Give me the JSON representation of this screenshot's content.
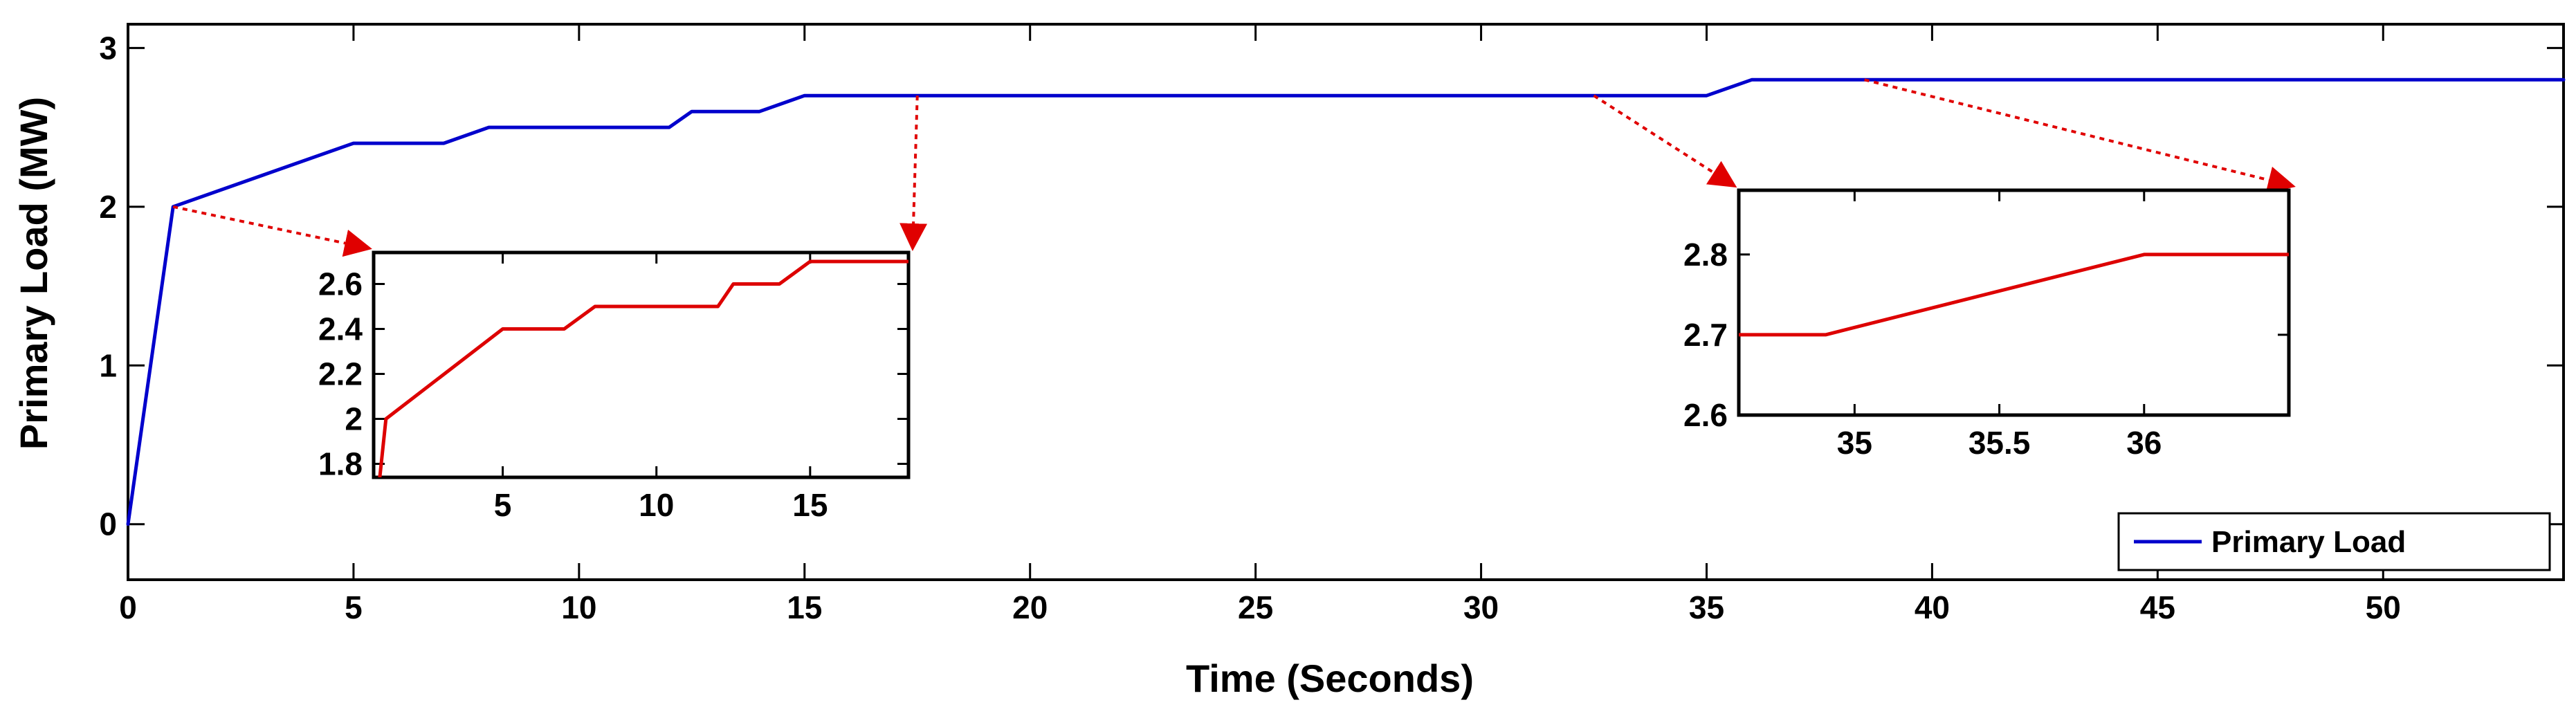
{
  "chart_data": {
    "type": "line",
    "xlabel": "Time (Seconds)",
    "ylabel": "Primary Load (MW)",
    "xlim": [
      0,
      54
    ],
    "ylim": [
      -0.35,
      3.15
    ],
    "xticks": [
      0,
      5,
      10,
      15,
      20,
      25,
      30,
      35,
      40,
      45,
      50
    ],
    "yticks": [
      0,
      1,
      2,
      3
    ],
    "grid": false,
    "legend_position": "bottom-right",
    "series": [
      {
        "name": "Primary Load",
        "color": "#0000cc",
        "x": [
          0,
          1,
          5,
          7,
          8,
          12,
          12.5,
          14,
          15,
          35,
          36,
          54
        ],
        "y": [
          0,
          2.0,
          2.4,
          2.4,
          2.5,
          2.5,
          2.6,
          2.6,
          2.7,
          2.7,
          2.8,
          2.8
        ]
      }
    ],
    "insets": [
      {
        "type": "line",
        "color": "#dd0000",
        "xlim": [
          0.8,
          18.2
        ],
        "ylim": [
          1.74,
          2.74
        ],
        "xticks": [
          5,
          10,
          15
        ],
        "yticks": [
          1.8,
          2,
          2.2,
          2.4,
          2.6
        ],
        "ytick_labels": [
          "1.8",
          "2",
          "2.2",
          "2.4",
          "2.6"
        ],
        "x": [
          1,
          1.2,
          5,
          7,
          8,
          12,
          12.5,
          14,
          15,
          18.2
        ],
        "y": [
          1.74,
          2.0,
          2.4,
          2.4,
          2.5,
          2.5,
          2.6,
          2.6,
          2.7,
          2.7
        ],
        "zoom_from": [
          1,
          17.5
        ]
      },
      {
        "type": "line",
        "color": "#dd0000",
        "xlim": [
          34.6,
          36.5
        ],
        "ylim": [
          2.6,
          2.88
        ],
        "xticks": [
          35,
          35.5,
          36
        ],
        "yticks": [
          2.6,
          2.7,
          2.8
        ],
        "ytick_labels": [
          "2.6",
          "2.7",
          "2.8"
        ],
        "x": [
          34.6,
          34.9,
          36,
          36.5
        ],
        "y": [
          2.7,
          2.7,
          2.8,
          2.8
        ],
        "zoom_from": [
          32.5,
          38.5
        ]
      }
    ]
  }
}
